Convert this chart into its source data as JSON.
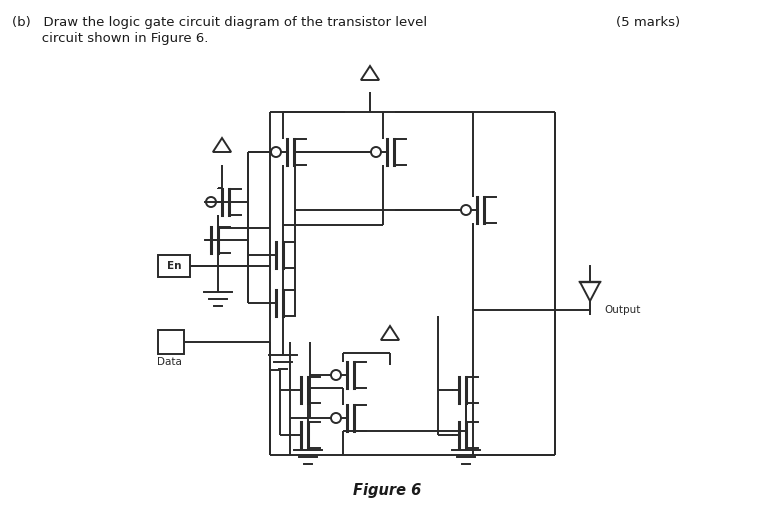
{
  "title_line1": "(b)   Draw the logic gate circuit diagram of the transistor level",
  "title_line2": "       circuit shown in Figure 6.",
  "marks_text": "(5 marks)",
  "fig_label": "Figure 6",
  "bg_color": "#ffffff",
  "line_color": "#2a2a2a",
  "text_color": "#1a1a1a",
  "label_En": "En",
  "label_Data": "Data",
  "label_Output": "Output"
}
